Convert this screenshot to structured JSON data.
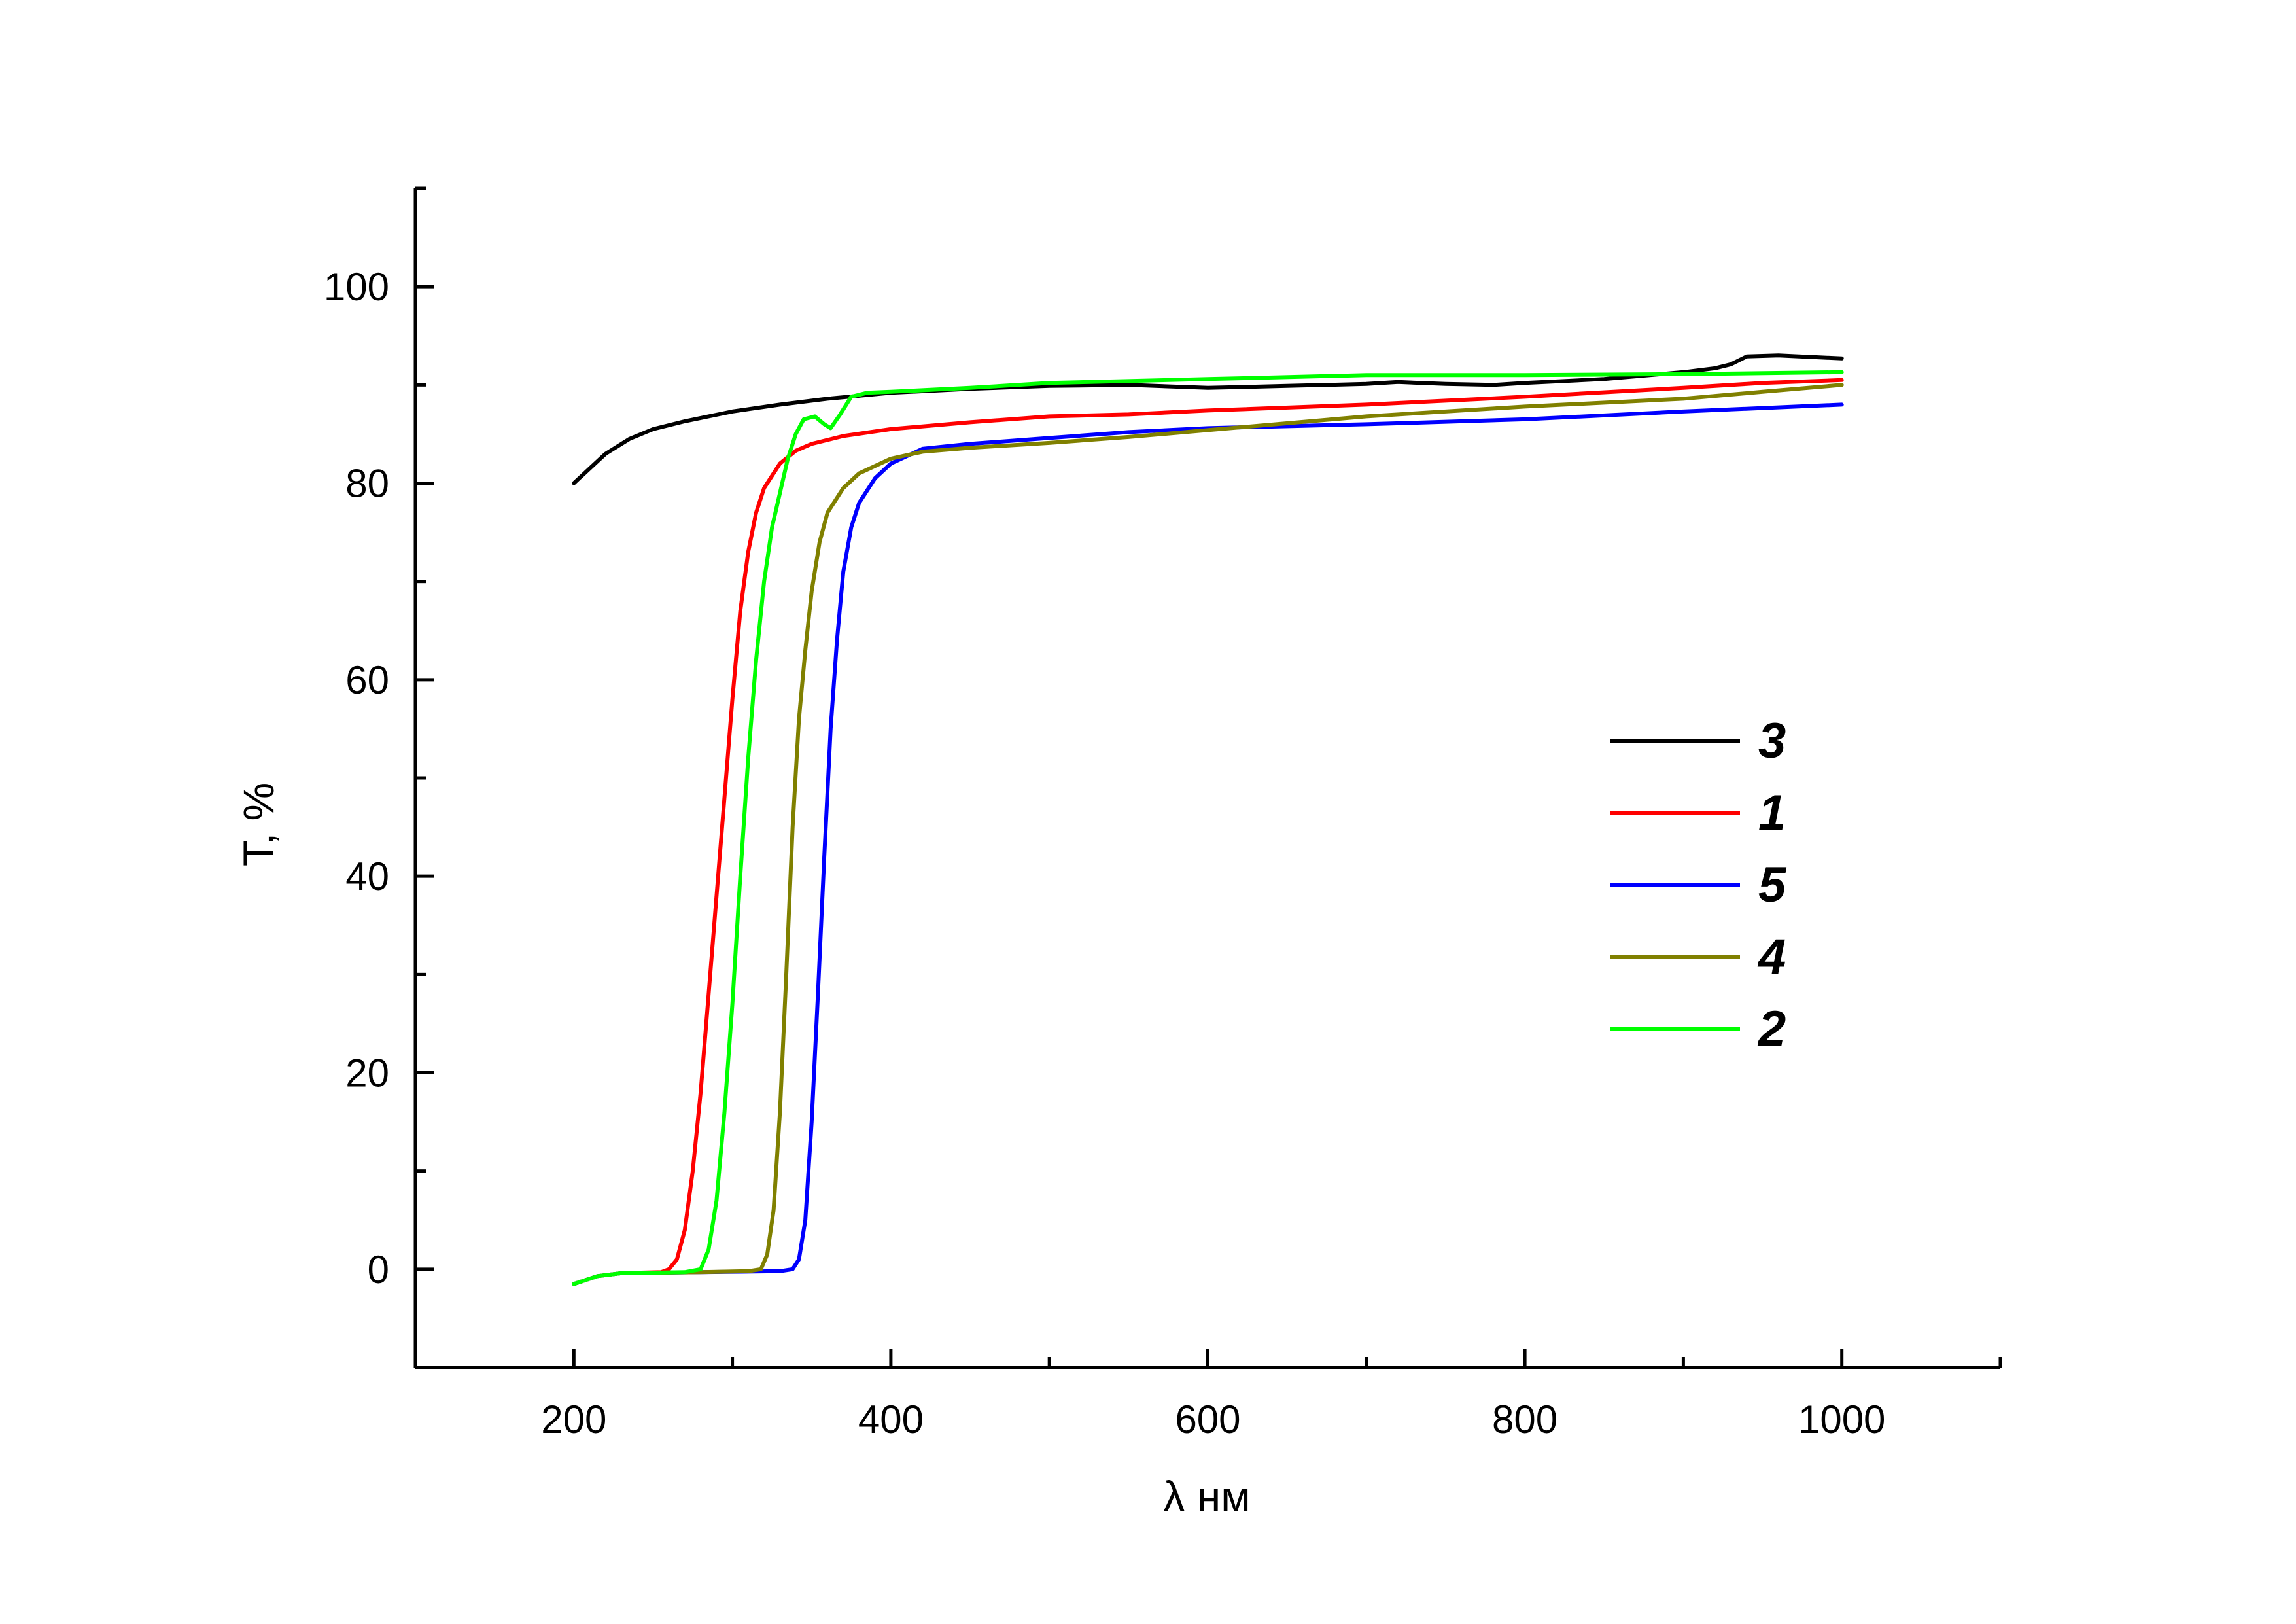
{
  "chart_data": {
    "type": "line",
    "title": "",
    "xlabel": "λ нм",
    "ylabel": "T, %",
    "xlim": [
      100,
      1100
    ],
    "ylim": [
      -10,
      110
    ],
    "x_ticks": [
      200,
      400,
      600,
      800,
      1000
    ],
    "x_tick_labels": [
      "200",
      "400",
      "600",
      "800",
      "1000"
    ],
    "y_ticks": [
      0,
      20,
      40,
      60,
      80,
      100
    ],
    "y_tick_labels": [
      "0",
      "20",
      "40",
      "60",
      "80",
      "100"
    ],
    "grid": false,
    "legend_position": "right",
    "series": [
      {
        "name": "3",
        "color": "#000000",
        "points": [
          [
            200,
            80.0
          ],
          [
            210,
            81.5
          ],
          [
            220,
            83.0
          ],
          [
            235,
            84.5
          ],
          [
            250,
            85.5
          ],
          [
            270,
            86.3
          ],
          [
            300,
            87.3
          ],
          [
            330,
            88.0
          ],
          [
            360,
            88.6
          ],
          [
            400,
            89.2
          ],
          [
            450,
            89.6
          ],
          [
            500,
            89.9
          ],
          [
            550,
            90.0
          ],
          [
            600,
            89.7
          ],
          [
            650,
            89.9
          ],
          [
            700,
            90.1
          ],
          [
            720,
            90.3
          ],
          [
            750,
            90.1
          ],
          [
            780,
            90.0
          ],
          [
            800,
            90.2
          ],
          [
            850,
            90.6
          ],
          [
            900,
            91.3
          ],
          [
            920,
            91.7
          ],
          [
            930,
            92.1
          ],
          [
            940,
            92.9
          ],
          [
            960,
            93.0
          ],
          [
            1000,
            92.7
          ]
        ]
      },
      {
        "name": "1",
        "color": "#ff0000",
        "points": [
          [
            200,
            -1.5
          ],
          [
            215,
            -0.7
          ],
          [
            230,
            -0.4
          ],
          [
            255,
            -0.3
          ],
          [
            260,
            0.0
          ],
          [
            265,
            1.0
          ],
          [
            270,
            4.0
          ],
          [
            275,
            10.0
          ],
          [
            280,
            18.0
          ],
          [
            285,
            28.0
          ],
          [
            290,
            38.0
          ],
          [
            295,
            48.0
          ],
          [
            300,
            58.0
          ],
          [
            305,
            67.0
          ],
          [
            310,
            73.0
          ],
          [
            315,
            77.0
          ],
          [
            320,
            79.5
          ],
          [
            330,
            82.0
          ],
          [
            340,
            83.3
          ],
          [
            350,
            84.0
          ],
          [
            370,
            84.8
          ],
          [
            400,
            85.5
          ],
          [
            450,
            86.2
          ],
          [
            500,
            86.8
          ],
          [
            550,
            87.0
          ],
          [
            600,
            87.4
          ],
          [
            700,
            88.0
          ],
          [
            800,
            88.8
          ],
          [
            900,
            89.7
          ],
          [
            950,
            90.2
          ],
          [
            1000,
            90.5
          ]
        ]
      },
      {
        "name": "5",
        "color": "#0000ff",
        "points": [
          [
            200,
            -1.5
          ],
          [
            215,
            -0.7
          ],
          [
            230,
            -0.4
          ],
          [
            280,
            -0.3
          ],
          [
            330,
            -0.2
          ],
          [
            338,
            0.0
          ],
          [
            342,
            1.0
          ],
          [
            346,
            5.0
          ],
          [
            350,
            15.0
          ],
          [
            354,
            28.0
          ],
          [
            358,
            42.0
          ],
          [
            362,
            55.0
          ],
          [
            366,
            64.0
          ],
          [
            370,
            71.0
          ],
          [
            375,
            75.5
          ],
          [
            380,
            78.0
          ],
          [
            390,
            80.5
          ],
          [
            400,
            82.0
          ],
          [
            420,
            83.5
          ],
          [
            450,
            84.0
          ],
          [
            500,
            84.6
          ],
          [
            550,
            85.2
          ],
          [
            600,
            85.6
          ],
          [
            700,
            86.0
          ],
          [
            800,
            86.5
          ],
          [
            900,
            87.3
          ],
          [
            1000,
            88.0
          ]
        ]
      },
      {
        "name": "4",
        "color": "#808000",
        "points": [
          [
            200,
            -1.5
          ],
          [
            215,
            -0.7
          ],
          [
            230,
            -0.4
          ],
          [
            280,
            -0.3
          ],
          [
            310,
            -0.2
          ],
          [
            318,
            0.0
          ],
          [
            322,
            1.5
          ],
          [
            326,
            6.0
          ],
          [
            330,
            16.0
          ],
          [
            334,
            30.0
          ],
          [
            338,
            45.0
          ],
          [
            342,
            56.0
          ],
          [
            346,
            63.0
          ],
          [
            350,
            69.0
          ],
          [
            355,
            74.0
          ],
          [
            360,
            77.0
          ],
          [
            370,
            79.5
          ],
          [
            380,
            81.0
          ],
          [
            400,
            82.5
          ],
          [
            420,
            83.2
          ],
          [
            450,
            83.6
          ],
          [
            500,
            84.1
          ],
          [
            550,
            84.7
          ],
          [
            600,
            85.4
          ],
          [
            700,
            86.8
          ],
          [
            800,
            87.8
          ],
          [
            900,
            88.6
          ],
          [
            950,
            89.3
          ],
          [
            1000,
            90.0
          ]
        ]
      },
      {
        "name": "2",
        "color": "#00ff00",
        "points": [
          [
            200,
            -1.5
          ],
          [
            215,
            -0.7
          ],
          [
            230,
            -0.4
          ],
          [
            270,
            -0.3
          ],
          [
            280,
            0.0
          ],
          [
            285,
            2.0
          ],
          [
            290,
            7.0
          ],
          [
            295,
            16.0
          ],
          [
            300,
            27.0
          ],
          [
            305,
            40.0
          ],
          [
            310,
            52.0
          ],
          [
            315,
            62.0
          ],
          [
            320,
            70.0
          ],
          [
            325,
            75.5
          ],
          [
            330,
            79.0
          ],
          [
            335,
            82.5
          ],
          [
            340,
            85.0
          ],
          [
            345,
            86.5
          ],
          [
            352,
            86.8
          ],
          [
            358,
            86.0
          ],
          [
            362,
            85.6
          ],
          [
            368,
            87.0
          ],
          [
            375,
            88.8
          ],
          [
            385,
            89.2
          ],
          [
            400,
            89.3
          ],
          [
            450,
            89.7
          ],
          [
            500,
            90.2
          ],
          [
            600,
            90.6
          ],
          [
            700,
            91.0
          ],
          [
            800,
            91.0
          ],
          [
            900,
            91.1
          ],
          [
            1000,
            91.3
          ]
        ]
      }
    ]
  }
}
